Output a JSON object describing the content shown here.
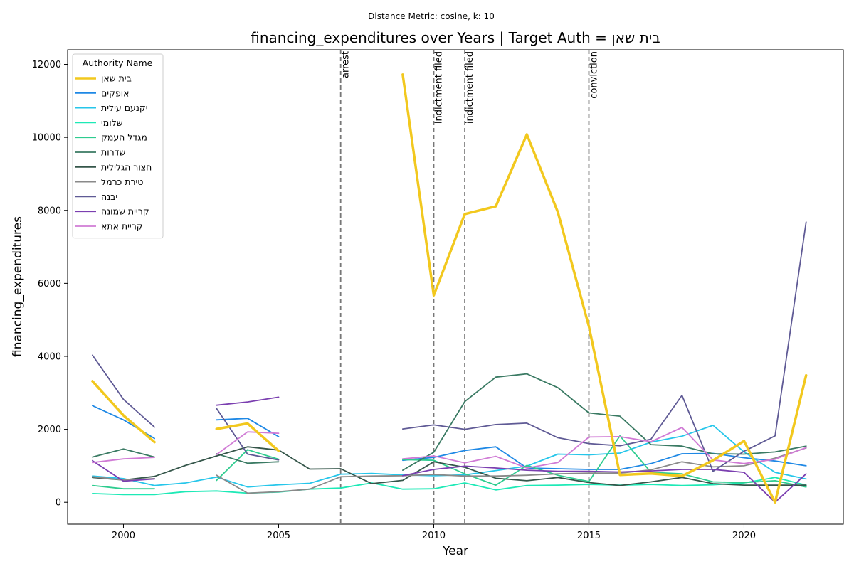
{
  "chart_data": {
    "type": "line",
    "suptitle": "Distance Metric: cosine, k: 10",
    "title": "financing_expenditures over Years | Target Auth = בית שאן",
    "xlabel": "Year",
    "ylabel": "financing_expenditures",
    "xlim": [
      1998.2,
      2023.2
    ],
    "ylim": [
      -600,
      12400
    ],
    "xticks": [
      2000,
      2005,
      2010,
      2015,
      2020
    ],
    "yticks": [
      0,
      2000,
      4000,
      6000,
      8000,
      10000,
      12000
    ],
    "grid": false,
    "legend": {
      "title": "Authority Name",
      "placement": "top-left"
    },
    "events": [
      {
        "year": 2007,
        "label": "arrest"
      },
      {
        "year": 2010,
        "label": "indictment filed"
      },
      {
        "year": 2011,
        "label": "indictment filed"
      },
      {
        "year": 2015,
        "label": "conviction"
      }
    ],
    "x": [
      1999,
      2000,
      2001,
      2002,
      2003,
      2004,
      2005,
      2006,
      2007,
      2008,
      2009,
      2010,
      2011,
      2012,
      2013,
      2014,
      2015,
      2016,
      2017,
      2018,
      2019,
      2020,
      2021,
      2022
    ],
    "series": [
      {
        "name": "בית שאן",
        "color": "#f2c81e",
        "width": 3.5,
        "values": [
          3320,
          2380,
          1650,
          null,
          2010,
          2160,
          1410,
          null,
          null,
          null,
          11720,
          5670,
          7900,
          8110,
          10080,
          7950,
          4820,
          750,
          790,
          720,
          1150,
          1680,
          0,
          3480
        ]
      },
      {
        "name": "אופקים",
        "color": "#1e88e5",
        "width": 1.8,
        "values": [
          2650,
          2260,
          1750,
          null,
          2260,
          2300,
          1800,
          null,
          null,
          null,
          1150,
          1230,
          1420,
          1520,
          940,
          920,
          900,
          900,
          1060,
          1330,
          1340,
          1220,
          1130,
          1000
        ]
      },
      {
        "name": "יקנעם עילית",
        "color": "#26c6ea",
        "width": 1.8,
        "values": [
          720,
          650,
          460,
          530,
          690,
          420,
          480,
          520,
          770,
          790,
          750,
          730,
          750,
          870,
          990,
          1320,
          1300,
          1350,
          1650,
          1810,
          2110,
          1380,
          820,
          640
        ]
      },
      {
        "name": "שלומי",
        "color": "#1de9b6",
        "width": 1.8,
        "values": [
          240,
          210,
          210,
          290,
          310,
          250,
          280,
          360,
          390,
          530,
          360,
          370,
          530,
          340,
          460,
          470,
          490,
          470,
          490,
          460,
          480,
          530,
          680,
          470
        ]
      },
      {
        "name": "מגדל העמק",
        "color": "#2ecc8f",
        "width": 1.8,
        "values": [
          460,
          370,
          370,
          null,
          600,
          1440,
          1180,
          null,
          null,
          null,
          1170,
          1150,
          780,
          470,
          1010,
          740,
          570,
          1820,
          820,
          780,
          560,
          540,
          590,
          420
        ]
      },
      {
        "name": "שדרות",
        "color": "#3a7a63",
        "width": 1.8,
        "values": [
          1240,
          1460,
          1240,
          null,
          1330,
          1070,
          1110,
          null,
          null,
          null,
          880,
          1370,
          2760,
          3430,
          3520,
          3140,
          2450,
          2360,
          1580,
          1540,
          1330,
          1320,
          1380,
          1540
        ]
      },
      {
        "name": "חצור הגלילית",
        "color": "#35564a",
        "width": 1.8,
        "values": [
          680,
          610,
          710,
          1010,
          1270,
          1520,
          1430,
          910,
          920,
          510,
          600,
          1110,
          960,
          660,
          590,
          680,
          540,
          460,
          560,
          680,
          510,
          470,
          470,
          470
        ]
      },
      {
        "name": "טירת כרמל",
        "color": "#8a8a8a",
        "width": 1.8,
        "values": [
          700,
          610,
          650,
          null,
          740,
          250,
          290,
          360,
          700,
          720,
          730,
          760,
          720,
          720,
          740,
          780,
          800,
          800,
          890,
          1110,
          970,
          1000,
          1210,
          1490
        ]
      },
      {
        "name": "יבנה",
        "color": "#5f5a95",
        "width": 1.8,
        "values": [
          4030,
          2820,
          2060,
          null,
          2570,
          1320,
          1160,
          null,
          null,
          null,
          2010,
          2120,
          2000,
          2130,
          2170,
          1770,
          1610,
          1550,
          1730,
          2930,
          850,
          1400,
          1820,
          7680
        ]
      },
      {
        "name": "קריית שמונה",
        "color": "#7b3fb0",
        "width": 1.8,
        "values": [
          1140,
          580,
          640,
          null,
          2660,
          2750,
          2880,
          null,
          null,
          null,
          730,
          900,
          990,
          940,
          880,
          850,
          850,
          830,
          860,
          900,
          900,
          820,
          0,
          780
        ]
      },
      {
        "name": "קריית אתא",
        "color": "#d07bd5",
        "width": 1.8,
        "values": [
          1090,
          1190,
          1230,
          null,
          1310,
          1930,
          1890,
          null,
          null,
          null,
          1190,
          1270,
          1080,
          1260,
          940,
          1090,
          1790,
          1800,
          1660,
          2050,
          1160,
          1060,
          1180,
          1500
        ]
      }
    ]
  }
}
